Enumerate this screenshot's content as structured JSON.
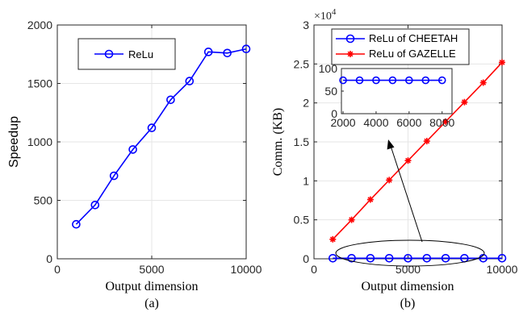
{
  "chart_data": [
    {
      "panel_label": "(a)",
      "type": "line",
      "xlabel": "Output dimension",
      "ylabel": "Speedup",
      "xlim": [
        0,
        10000
      ],
      "ylim": [
        0,
        2000
      ],
      "xticks": [
        "0",
        "5000",
        "10000"
      ],
      "yticks": [
        "0",
        "500",
        "1000",
        "1500",
        "2000"
      ],
      "grid": true,
      "legend_position": "upper-left",
      "series": [
        {
          "name": "ReLu",
          "color": "#0000ff",
          "marker": "circle",
          "x": [
            1000,
            2000,
            3000,
            4000,
            5000,
            6000,
            7000,
            8000,
            9000,
            10000
          ],
          "y": [
            295,
            460,
            710,
            935,
            1120,
            1360,
            1520,
            1770,
            1760,
            1795
          ]
        }
      ]
    },
    {
      "panel_label": "(b)",
      "type": "line",
      "xlabel": "Output dimension",
      "ylabel": "Comm.  (KB)",
      "multiplier_base": "×10",
      "multiplier_exp": "4",
      "xlim": [
        0,
        10000
      ],
      "ylim": [
        0,
        3
      ],
      "xticks": [
        "0",
        "5000",
        "10000"
      ],
      "yticks": [
        "0",
        "0.5",
        "1",
        "1.5",
        "2",
        "2.5",
        "3"
      ],
      "grid": true,
      "legend_position": "upper-left",
      "series": [
        {
          "name": "ReLu of CHEETAH",
          "color": "#0000ff",
          "marker": "circle",
          "x": [
            1000,
            2000,
            3000,
            4000,
            5000,
            6000,
            7000,
            8000,
            9000,
            10000
          ],
          "y": [
            0.0074,
            0.0074,
            0.0074,
            0.0074,
            0.0074,
            0.0074,
            0.0074,
            0.0074,
            0.0074,
            0.0074
          ]
        },
        {
          "name": "ReLu of GAZELLE",
          "color": "#ff0000",
          "marker": "asterisk",
          "x": [
            1000,
            2000,
            3000,
            4000,
            5000,
            6000,
            7000,
            8000,
            9000,
            10000
          ],
          "y": [
            0.25,
            0.5,
            0.76,
            1.01,
            1.26,
            1.51,
            1.76,
            2.01,
            2.26,
            2.52
          ]
        }
      ],
      "inset": {
        "xlim": [
          1900,
          8600
        ],
        "ylim": [
          0,
          100
        ],
        "xticks": [
          "2000",
          "4000",
          "6000",
          "8000"
        ],
        "yticks": [
          "0",
          "50",
          "100"
        ],
        "series_name": "ReLu of CHEETAH",
        "x": [
          2000,
          3000,
          4000,
          5000,
          6000,
          7000,
          8000
        ],
        "y": [
          74,
          74,
          74,
          74,
          74,
          74,
          74
        ]
      }
    }
  ]
}
